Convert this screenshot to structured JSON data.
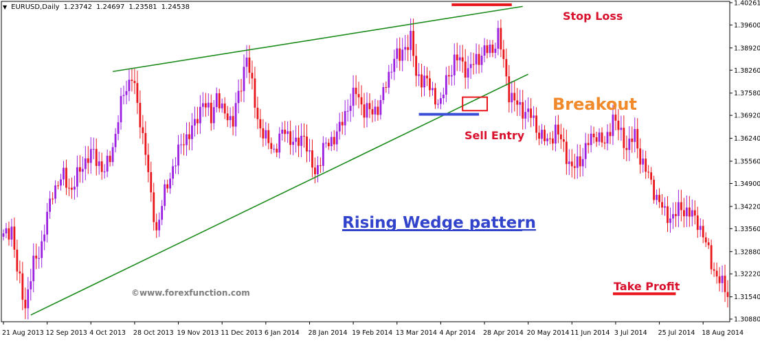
{
  "chart_data": {
    "type": "candlestick",
    "symbol_label": "EURUSD,Daily",
    "ohlc_header": [
      "1.23742",
      "1.24697",
      "1.23581",
      "1.24538"
    ],
    "ylim": [
      1.308,
      1.403
    ],
    "y_ticks": [
      "1.40261",
      "1.39600",
      "1.38920",
      "1.38260",
      "1.37580",
      "1.36920",
      "1.36240",
      "1.35560",
      "1.34900",
      "1.34220",
      "1.33560",
      "1.32880",
      "1.32220",
      "1.31540",
      "1.30880"
    ],
    "x_ticks": [
      "21 Aug 2013",
      "12 Sep 2013",
      "4 Oct 2013",
      "28 Oct 2013",
      "19 Nov 2013",
      "11 Dec 2013",
      "6 Jan 2014",
      "28 Jan 2014",
      "19 Feb 2014",
      "13 Mar 2014",
      "4 Apr 2014",
      "28 Apr 2014",
      "20 May 2014",
      "11 Jun 2014",
      "3 Jul 2014",
      "25 Jul 2014",
      "18 Aug 2014"
    ],
    "x_tick_index": [
      0,
      16,
      32,
      48,
      64,
      80,
      96,
      112,
      128,
      144,
      160,
      176,
      192,
      208,
      224,
      240,
      256
    ],
    "close_path": [
      [
        0,
        1.333
      ],
      [
        3,
        1.336
      ],
      [
        5,
        1.323
      ],
      [
        8,
        1.313
      ],
      [
        11,
        1.325
      ],
      [
        14,
        1.331
      ],
      [
        18,
        1.347
      ],
      [
        22,
        1.351
      ],
      [
        25,
        1.347
      ],
      [
        29,
        1.355
      ],
      [
        33,
        1.358
      ],
      [
        37,
        1.352
      ],
      [
        40,
        1.36
      ],
      [
        44,
        1.376
      ],
      [
        47,
        1.381
      ],
      [
        49,
        1.372
      ],
      [
        52,
        1.359
      ],
      [
        54,
        1.344
      ],
      [
        56,
        1.335
      ],
      [
        58,
        1.343
      ],
      [
        62,
        1.354
      ],
      [
        66,
        1.362
      ],
      [
        70,
        1.366
      ],
      [
        73,
        1.374
      ],
      [
        76,
        1.368
      ],
      [
        78,
        1.376
      ],
      [
        80,
        1.37
      ],
      [
        84,
        1.368
      ],
      [
        87,
        1.378
      ],
      [
        89,
        1.388
      ],
      [
        90,
        1.382
      ],
      [
        93,
        1.368
      ],
      [
        96,
        1.362
      ],
      [
        99,
        1.359
      ],
      [
        103,
        1.365
      ],
      [
        107,
        1.36
      ],
      [
        110,
        1.364
      ],
      [
        112,
        1.356
      ],
      [
        114,
        1.352
      ],
      [
        117,
        1.359
      ],
      [
        120,
        1.362
      ],
      [
        123,
        1.365
      ],
      [
        126,
        1.372
      ],
      [
        129,
        1.376
      ],
      [
        132,
        1.371
      ],
      [
        135,
        1.37
      ],
      [
        138,
        1.373
      ],
      [
        141,
        1.381
      ],
      [
        143,
        1.387
      ],
      [
        145,
        1.386
      ],
      [
        147,
        1.39
      ],
      [
        149,
        1.392
      ],
      [
        151,
        1.381
      ],
      [
        154,
        1.38
      ],
      [
        157,
        1.376
      ],
      [
        160,
        1.372
      ],
      [
        162,
        1.38
      ],
      [
        165,
        1.385
      ],
      [
        167,
        1.386
      ],
      [
        170,
        1.382
      ],
      [
        173,
        1.386
      ],
      [
        176,
        1.388
      ],
      [
        179,
        1.389
      ],
      [
        181,
        1.393
      ],
      [
        183,
        1.385
      ],
      [
        185,
        1.376
      ],
      [
        187,
        1.373
      ],
      [
        190,
        1.371
      ],
      [
        193,
        1.369
      ],
      [
        196,
        1.364
      ],
      [
        199,
        1.361
      ],
      [
        202,
        1.365
      ],
      [
        205,
        1.36
      ],
      [
        208,
        1.353
      ],
      [
        211,
        1.356
      ],
      [
        214,
        1.361
      ],
      [
        217,
        1.364
      ],
      [
        220,
        1.36
      ],
      [
        223,
        1.369
      ],
      [
        225,
        1.365
      ],
      [
        228,
        1.36
      ],
      [
        231,
        1.363
      ],
      [
        233,
        1.357
      ],
      [
        236,
        1.351
      ],
      [
        239,
        1.345
      ],
      [
        242,
        1.34
      ],
      [
        245,
        1.339
      ],
      [
        248,
        1.342
      ],
      [
        251,
        1.34
      ],
      [
        254,
        1.338
      ],
      [
        257,
        1.331
      ],
      [
        259,
        1.326
      ],
      [
        261,
        1.321
      ],
      [
        263,
        1.319
      ],
      [
        265,
        1.317
      ]
    ],
    "bar_count": 266,
    "upper_trendline": [
      [
        40,
        1.3822
      ],
      [
        190,
        1.4015
      ]
    ],
    "lower_trendline": [
      [
        10,
        1.31
      ],
      [
        192,
        1.3814
      ]
    ],
    "stop_loss_level": 1.402,
    "stop_loss_range": [
      164,
      186
    ],
    "sell_entry_level": 1.3695,
    "sell_entry_range": [
      152,
      174
    ],
    "take_profit_level": 1.3163,
    "take_profit_range": [
      223,
      246
    ],
    "breakout_box": {
      "x": [
        168,
        177
      ],
      "y": [
        1.3706,
        1.3746
      ]
    },
    "annotations": {
      "stop_loss": "Stop Loss",
      "breakout": "Breakout",
      "sell_entry": "Sell Entry",
      "take_profit": "Take Profit",
      "pattern_title": "Rising Wedge pattern",
      "watermark": "©www.forexfunction.com"
    },
    "colors": {
      "bull": "#9a1fe0",
      "bear": "#e8151b",
      "trendline": "#1a8a1a",
      "level_line": "#e8151b",
      "entry_line": "#3b4fd6",
      "breakout_text": "#f08a2a",
      "annotation_text": "#d8102c",
      "pattern_text": "#3344cc",
      "watermark_text": "#7d7d7d"
    }
  }
}
